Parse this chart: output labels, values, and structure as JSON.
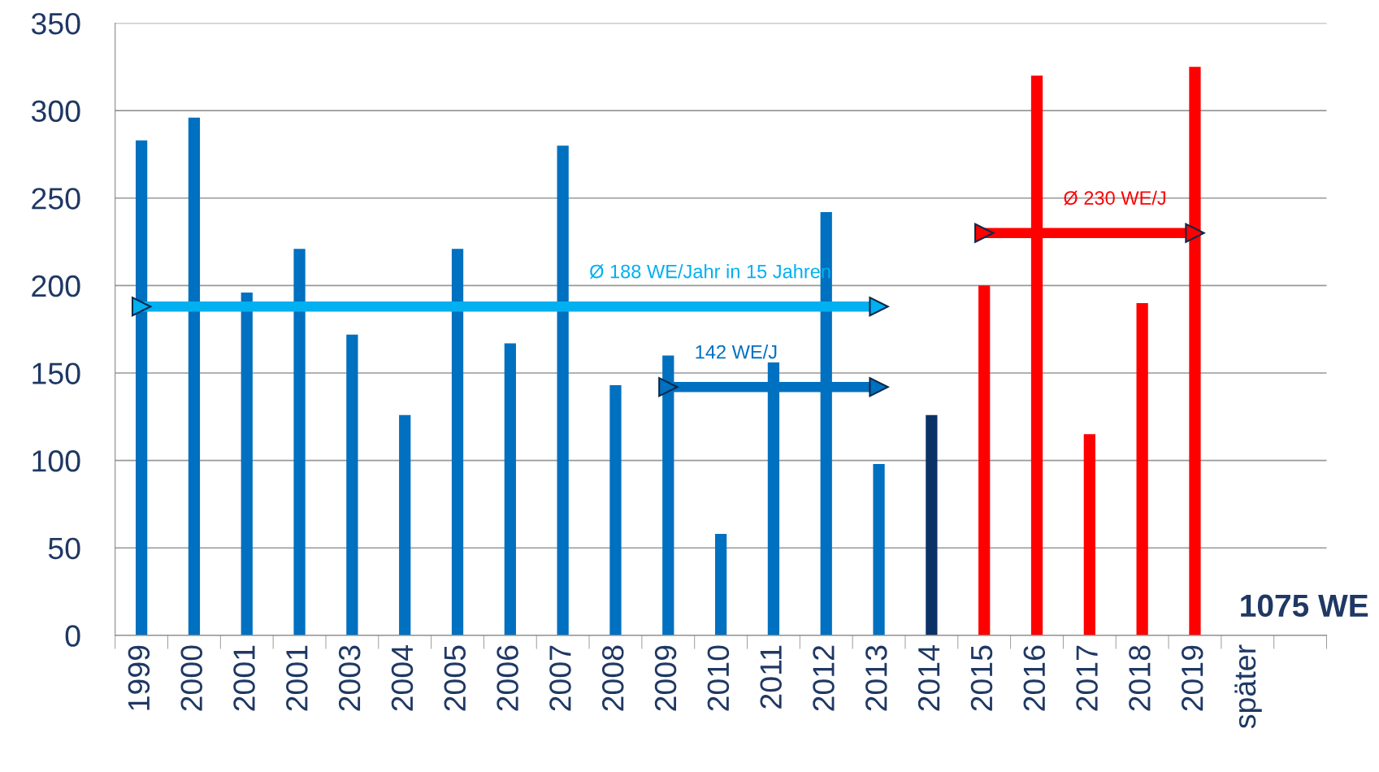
{
  "chart_data": {
    "type": "bar",
    "categories": [
      "1999",
      "2000",
      "2001",
      "2001",
      "2003",
      "2004",
      "2005",
      "2006",
      "2007",
      "2008",
      "2009",
      "2010",
      "2011",
      "2012",
      "2013",
      "2014",
      "2015",
      "2016",
      "2017",
      "2018",
      "2019",
      "später",
      null
    ],
    "series": [
      {
        "values": [
          283,
          296,
          196,
          221,
          172,
          126,
          221,
          167,
          280,
          143,
          160,
          58,
          156,
          242,
          98,
          126,
          200,
          320,
          115,
          190,
          325,
          null,
          null
        ],
        "colors": [
          "#0070c0",
          "#0070c0",
          "#0070c0",
          "#0070c0",
          "#0070c0",
          "#0070c0",
          "#0070c0",
          "#0070c0",
          "#0070c0",
          "#0070c0",
          "#0070c0",
          "#0070c0",
          "#0070c0",
          "#0070c0",
          "#0070c0",
          "#0a3266",
          "#ff0000",
          "#ff0000",
          "#ff0000",
          "#ff0000",
          "#ff0000",
          null,
          null
        ]
      },
      {
        "type": "line",
        "name": "Ø 188 WE/Jahr in 15 Jahren",
        "color": "#00b0f0",
        "values": [
          188,
          188,
          188,
          188,
          188,
          188,
          188,
          188,
          188,
          188,
          188,
          188,
          188,
          188,
          188,
          null,
          null,
          null,
          null,
          null,
          null,
          null,
          null
        ]
      },
      {
        "type": "line",
        "name": "142 WE/J",
        "color": "#0070c0",
        "values": [
          null,
          null,
          null,
          null,
          null,
          null,
          null,
          null,
          null,
          null,
          142,
          142,
          142,
          142,
          142,
          null,
          null,
          null,
          null,
          null,
          null,
          null,
          null
        ]
      },
      {
        "type": "line",
        "name": "Ø 230 WE/J",
        "color": "#ff0000",
        "values": [
          null,
          null,
          null,
          null,
          null,
          null,
          null,
          null,
          null,
          null,
          null,
          null,
          null,
          null,
          null,
          null,
          230,
          230,
          230,
          230,
          230,
          null,
          null
        ]
      }
    ],
    "ylim": [
      0,
      350
    ],
    "yticks": [
      0,
      50,
      100,
      150,
      200,
      250,
      300,
      350
    ],
    "grid": "y",
    "legend": false,
    "annotations": [
      "1075 WE"
    ]
  }
}
